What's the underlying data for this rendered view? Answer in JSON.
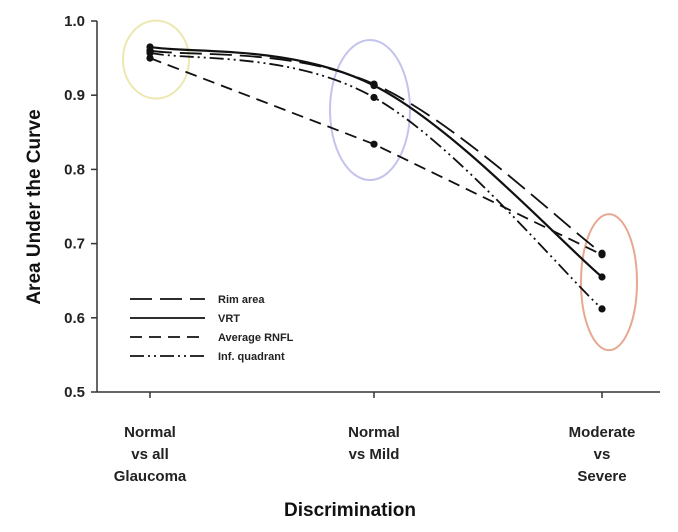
{
  "chart_data": {
    "type": "line",
    "categories": [
      "Normal vs all Glaucoma",
      "Normal vs Mild",
      "Moderate vs Severe"
    ],
    "category_lines": [
      [
        "Normal",
        "vs all",
        "Glaucoma"
      ],
      [
        "Normal",
        "vs Mild"
      ],
      [
        "Moderate",
        "vs",
        "Severe"
      ]
    ],
    "xlabel": "Discrimination",
    "ylabel": "Area Under the Curve",
    "ylim": [
      0.5,
      1.0
    ],
    "yticks": [
      "0.5",
      "0.6",
      "0.7",
      "0.8",
      "0.9",
      "1.0"
    ],
    "grid": false,
    "legend_position": "lower-left",
    "series": [
      {
        "name": "Rim area",
        "values": [
          0.96,
          0.915,
          0.687
        ],
        "dash": "long-dash"
      },
      {
        "name": "VRT",
        "values": [
          0.965,
          0.913,
          0.655
        ],
        "dash": "solid"
      },
      {
        "name": "Average RNFL",
        "values": [
          0.95,
          0.834,
          0.685
        ],
        "dash": "dash"
      },
      {
        "name": "Inf. quadrant",
        "values": [
          0.957,
          0.897,
          0.612
        ],
        "dash": "dash-dot-dot"
      }
    ],
    "highlight_ellipses": [
      {
        "category": 0,
        "center_value": 0.948,
        "color": "#ece8b0"
      },
      {
        "category": 1,
        "center_value": 0.88,
        "color": "#c3c3ee"
      },
      {
        "category": 2,
        "center_value": 0.648,
        "color": "#e7a892"
      }
    ]
  }
}
